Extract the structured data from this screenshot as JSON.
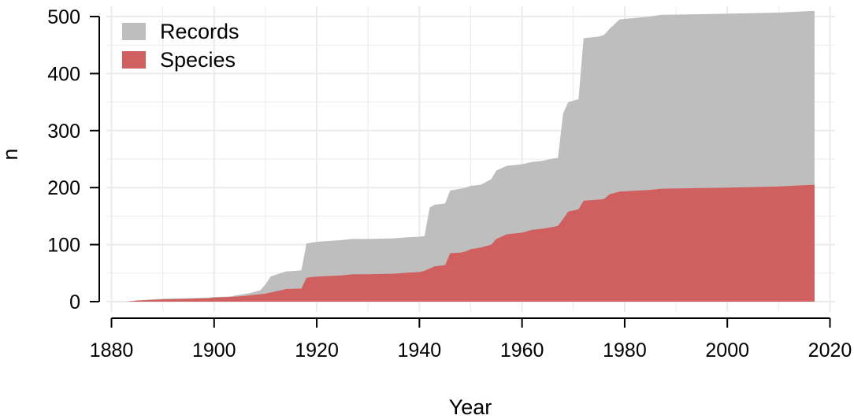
{
  "chart_data": {
    "type": "area",
    "xlabel": "Year",
    "ylabel": "n",
    "xlim": [
      1879,
      2021
    ],
    "ylim": [
      -18,
      518
    ],
    "x_ticks": [
      1880,
      1900,
      1920,
      1940,
      1960,
      1980,
      2000,
      2020
    ],
    "y_ticks": [
      0,
      100,
      200,
      300,
      400,
      500
    ],
    "grid": true,
    "legend_position": "top-left",
    "series": [
      {
        "name": "Records",
        "color": "#bebebe",
        "points": [
          [
            1883,
            0
          ],
          [
            1885,
            2
          ],
          [
            1888,
            4
          ],
          [
            1890,
            5
          ],
          [
            1895,
            6
          ],
          [
            1899,
            7
          ],
          [
            1900,
            8
          ],
          [
            1903,
            9
          ],
          [
            1905,
            12
          ],
          [
            1907,
            15
          ],
          [
            1909,
            20
          ],
          [
            1910,
            30
          ],
          [
            1911,
            44
          ],
          [
            1913,
            50
          ],
          [
            1914,
            53
          ],
          [
            1916,
            54
          ],
          [
            1917,
            55
          ],
          [
            1918,
            102
          ],
          [
            1920,
            105
          ],
          [
            1925,
            108
          ],
          [
            1927,
            110
          ],
          [
            1930,
            110
          ],
          [
            1935,
            111
          ],
          [
            1938,
            113
          ],
          [
            1940,
            114
          ],
          [
            1941,
            115
          ],
          [
            1942,
            165
          ],
          [
            1943,
            170
          ],
          [
            1945,
            172
          ],
          [
            1946,
            195
          ],
          [
            1948,
            198
          ],
          [
            1949,
            200
          ],
          [
            1950,
            203
          ],
          [
            1952,
            205
          ],
          [
            1954,
            215
          ],
          [
            1955,
            230
          ],
          [
            1957,
            238
          ],
          [
            1959,
            240
          ],
          [
            1960,
            241
          ],
          [
            1962,
            245
          ],
          [
            1964,
            247
          ],
          [
            1966,
            251
          ],
          [
            1967,
            252
          ],
          [
            1968,
            330
          ],
          [
            1969,
            350
          ],
          [
            1971,
            355
          ],
          [
            1972,
            462
          ],
          [
            1975,
            465
          ],
          [
            1976,
            468
          ],
          [
            1977,
            478
          ],
          [
            1979,
            495
          ],
          [
            1985,
            500
          ],
          [
            1987,
            503
          ],
          [
            2000,
            505
          ],
          [
            2010,
            507
          ],
          [
            2017,
            510
          ]
        ]
      },
      {
        "name": "Species",
        "color": "#d06060",
        "points": [
          [
            1883,
            0
          ],
          [
            1885,
            2
          ],
          [
            1888,
            3
          ],
          [
            1890,
            4
          ],
          [
            1895,
            5
          ],
          [
            1899,
            6
          ],
          [
            1900,
            7
          ],
          [
            1903,
            8
          ],
          [
            1906,
            10
          ],
          [
            1908,
            12
          ],
          [
            1910,
            14
          ],
          [
            1911,
            16
          ],
          [
            1913,
            20
          ],
          [
            1914,
            22
          ],
          [
            1917,
            23
          ],
          [
            1918,
            42
          ],
          [
            1920,
            44
          ],
          [
            1925,
            46
          ],
          [
            1927,
            48
          ],
          [
            1930,
            48
          ],
          [
            1935,
            49
          ],
          [
            1938,
            51
          ],
          [
            1940,
            52
          ],
          [
            1941,
            54
          ],
          [
            1942,
            58
          ],
          [
            1943,
            62
          ],
          [
            1945,
            64
          ],
          [
            1946,
            85
          ],
          [
            1948,
            86
          ],
          [
            1949,
            88
          ],
          [
            1950,
            92
          ],
          [
            1952,
            95
          ],
          [
            1954,
            100
          ],
          [
            1955,
            110
          ],
          [
            1957,
            118
          ],
          [
            1959,
            120
          ],
          [
            1960,
            121
          ],
          [
            1962,
            126
          ],
          [
            1964,
            128
          ],
          [
            1966,
            131
          ],
          [
            1967,
            133
          ],
          [
            1968,
            145
          ],
          [
            1969,
            158
          ],
          [
            1971,
            162
          ],
          [
            1972,
            177
          ],
          [
            1975,
            179
          ],
          [
            1976,
            180
          ],
          [
            1977,
            188
          ],
          [
            1979,
            193
          ],
          [
            1985,
            196
          ],
          [
            1987,
            198
          ],
          [
            2000,
            200
          ],
          [
            2010,
            202
          ],
          [
            2017,
            205
          ]
        ]
      }
    ]
  }
}
